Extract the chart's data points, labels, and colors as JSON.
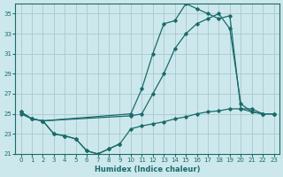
{
  "xlabel": "Humidex (Indice chaleur)",
  "background_color": "#cde8ec",
  "grid_color": "#aecdd2",
  "line_color": "#1a6b6b",
  "xlim": [
    -0.5,
    23.5
  ],
  "ylim": [
    21,
    36
  ],
  "xticks": [
    0,
    1,
    2,
    3,
    4,
    5,
    6,
    7,
    8,
    9,
    10,
    11,
    12,
    13,
    14,
    15,
    16,
    17,
    18,
    19,
    20,
    21,
    22,
    23
  ],
  "yticks": [
    21,
    23,
    25,
    27,
    29,
    31,
    33,
    35
  ],
  "line1_x": [
    0,
    1,
    2,
    10,
    11,
    12,
    13,
    14,
    15,
    16,
    17,
    18,
    19,
    20,
    21,
    22,
    23
  ],
  "line1_y": [
    25.2,
    24.5,
    24.3,
    25.0,
    27.5,
    31.0,
    34.0,
    34.3,
    36.0,
    35.5,
    35.0,
    34.5,
    34.8,
    25.5,
    25.2,
    25.0,
    25.0
  ],
  "line2_x": [
    0,
    1,
    2,
    10,
    11,
    12,
    13,
    14,
    15,
    16,
    17,
    18,
    19,
    20,
    21,
    22,
    23
  ],
  "line2_y": [
    25.2,
    24.5,
    24.3,
    24.8,
    25.0,
    27.0,
    29.0,
    31.5,
    33.0,
    34.0,
    34.5,
    35.0,
    33.5,
    26.0,
    25.2,
    25.0,
    25.0
  ],
  "line3_x": [
    0,
    1,
    2,
    3,
    4,
    5,
    6,
    7,
    8,
    9,
    10,
    11,
    12,
    13,
    14,
    15,
    16,
    17,
    18,
    19,
    20,
    21,
    22,
    23
  ],
  "line3_y": [
    25.0,
    24.5,
    24.3,
    23.0,
    22.8,
    22.5,
    21.3,
    21.0,
    21.5,
    22.0,
    23.5,
    23.8,
    24.0,
    24.2,
    24.5,
    24.7,
    25.0,
    25.2,
    25.3,
    25.5,
    25.5,
    25.5,
    25.0,
    25.0
  ],
  "line4_x": [
    2,
    3,
    4,
    5,
    6,
    7,
    8,
    9
  ],
  "line4_y": [
    24.3,
    23.0,
    22.8,
    22.5,
    21.3,
    21.0,
    21.5,
    22.0
  ]
}
